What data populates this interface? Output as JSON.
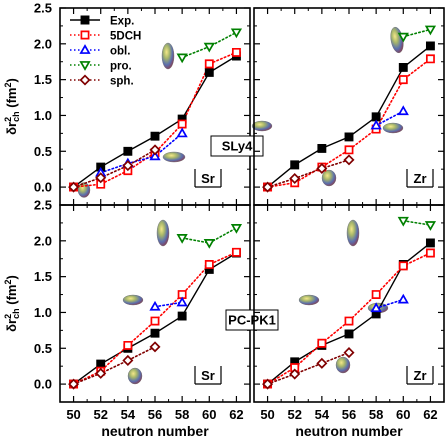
{
  "figure": {
    "xlabel": "neutron number",
    "ylabel_main": "δr",
    "ylabel_sup": "2",
    "ylabel_sub": "ch",
    "ylabel_unit": " (fm",
    "ylabel_unit_sup": "2",
    "ylabel_close": ")",
    "y_ticks": [
      "0.0",
      "0.5",
      "1.0",
      "1.5",
      "2.0",
      "2.5"
    ],
    "x_ticks": [
      "50",
      "52",
      "54",
      "56",
      "58",
      "60",
      "62"
    ],
    "forces": [
      "SLy4",
      "PC-PK1"
    ],
    "elements": [
      "Sr",
      "Zr"
    ]
  },
  "legend": [
    {
      "label": "Exp.",
      "color": "#000000",
      "marker": "square-filled",
      "line": "solid"
    },
    {
      "label": "5DCH",
      "color": "#ff0000",
      "marker": "square-open",
      "line": "dotted"
    },
    {
      "label": "obl.",
      "color": "#0000ff",
      "marker": "triangle-up-open",
      "line": "dotted"
    },
    {
      "label": "pro.",
      "color": "#008000",
      "marker": "triangle-down-open",
      "line": "dotted"
    },
    {
      "label": "sph.",
      "color": "#800000",
      "marker": "diamond-open",
      "line": "dotted"
    }
  ],
  "chart_data": [
    {
      "type": "line",
      "force": "SLy4",
      "element": "Sr",
      "xlim": [
        49,
        63
      ],
      "ylim": [
        -0.25,
        2.5
      ],
      "series": [
        {
          "name": "Exp.",
          "x": [
            50,
            52,
            54,
            56,
            58,
            60,
            62
          ],
          "y": [
            0.0,
            0.28,
            0.5,
            0.71,
            0.95,
            1.6,
            1.83
          ]
        },
        {
          "name": "5DCH",
          "x": [
            50,
            52,
            54,
            56,
            58,
            60,
            62
          ],
          "y": [
            0.0,
            0.04,
            0.23,
            0.48,
            0.88,
            1.72,
            1.88
          ]
        },
        {
          "name": "obl.",
          "x": [
            52,
            54,
            56,
            58
          ],
          "y": [
            0.2,
            0.33,
            0.43,
            0.75
          ]
        },
        {
          "name": "pro.",
          "x": [
            58,
            60,
            62
          ],
          "y": [
            1.81,
            1.96,
            2.16
          ]
        },
        {
          "name": "sph.",
          "x": [
            50,
            52,
            54,
            56
          ],
          "y": [
            0.0,
            0.13,
            0.3,
            0.52
          ]
        }
      ]
    },
    {
      "type": "line",
      "force": "SLy4",
      "element": "Zr",
      "xlim": [
        49,
        63
      ],
      "ylim": [
        -0.25,
        2.5
      ],
      "series": [
        {
          "name": "Exp.",
          "x": [
            50,
            52,
            54,
            56,
            58,
            60,
            62
          ],
          "y": [
            0.0,
            0.31,
            0.54,
            0.7,
            0.98,
            1.67,
            1.97
          ]
        },
        {
          "name": "5DCH",
          "x": [
            50,
            52,
            54,
            56,
            58,
            60,
            62
          ],
          "y": [
            0.0,
            0.06,
            0.28,
            0.52,
            0.81,
            1.5,
            1.79
          ]
        },
        {
          "name": "obl.",
          "x": [
            58,
            60
          ],
          "y": [
            0.86,
            1.06
          ]
        },
        {
          "name": "pro.",
          "x": [
            60,
            62
          ],
          "y": [
            2.1,
            2.2
          ]
        },
        {
          "name": "sph.",
          "x": [
            50,
            52,
            54,
            56
          ],
          "y": [
            0.0,
            0.12,
            0.26,
            0.38
          ]
        }
      ]
    },
    {
      "type": "line",
      "force": "PC-PK1",
      "element": "Sr",
      "xlim": [
        49,
        63
      ],
      "ylim": [
        -0.25,
        2.5
      ],
      "series": [
        {
          "name": "Exp.",
          "x": [
            50,
            52,
            54,
            56,
            58,
            60,
            62
          ],
          "y": [
            0.0,
            0.28,
            0.5,
            0.71,
            0.95,
            1.6,
            1.83
          ]
        },
        {
          "name": "5DCH",
          "x": [
            50,
            52,
            54,
            56,
            58,
            60,
            62
          ],
          "y": [
            0.0,
            0.18,
            0.54,
            0.88,
            1.25,
            1.67,
            1.84
          ]
        },
        {
          "name": "obl.",
          "x": [
            56,
            58
          ],
          "y": [
            1.08,
            1.14
          ]
        },
        {
          "name": "pro.",
          "x": [
            58,
            60,
            62
          ],
          "y": [
            2.04,
            1.97,
            2.18
          ]
        },
        {
          "name": "sph.",
          "x": [
            50,
            52,
            54,
            56
          ],
          "y": [
            0.0,
            0.15,
            0.33,
            0.52
          ]
        }
      ]
    },
    {
      "type": "line",
      "force": "PC-PK1",
      "element": "Zr",
      "xlim": [
        49,
        63
      ],
      "ylim": [
        -0.25,
        2.5
      ],
      "series": [
        {
          "name": "Exp.",
          "x": [
            50,
            52,
            54,
            56,
            58,
            60,
            62
          ],
          "y": [
            0.0,
            0.31,
            0.54,
            0.7,
            0.98,
            1.67,
            1.97
          ]
        },
        {
          "name": "5DCH",
          "x": [
            50,
            52,
            54,
            56,
            58,
            60,
            62
          ],
          "y": [
            0.0,
            0.23,
            0.57,
            0.88,
            1.25,
            1.65,
            1.83
          ]
        },
        {
          "name": "obl.",
          "x": [
            58,
            60
          ],
          "y": [
            1.06,
            1.18
          ]
        },
        {
          "name": "pro.",
          "x": [
            60,
            62
          ],
          "y": [
            2.28,
            2.22
          ]
        },
        {
          "name": "sph.",
          "x": [
            50,
            52,
            54,
            56
          ],
          "y": [
            0.0,
            0.14,
            0.29,
            0.44
          ]
        }
      ]
    }
  ]
}
